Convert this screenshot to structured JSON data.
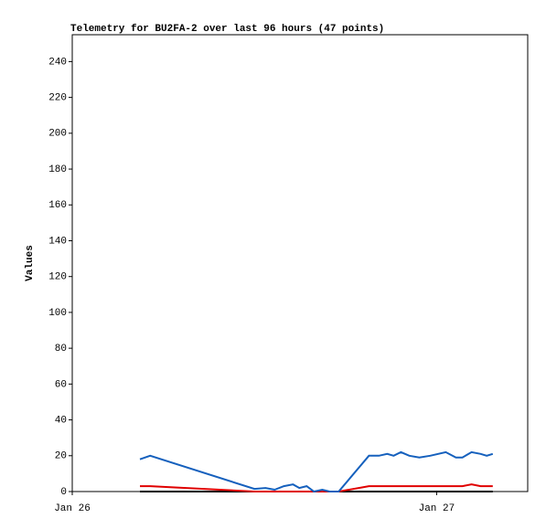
{
  "chart_data": {
    "type": "line",
    "title": "Telemetry for BU2FA-2 over last 96 hours (47 points)",
    "ylabel": "Values",
    "x": [
      4.46,
      5.13,
      12.0,
      12.73,
      13.33,
      13.94,
      14.54,
      14.96,
      15.44,
      15.92,
      16.47,
      16.95,
      17.55,
      19.54,
      20.2,
      20.75,
      21.17,
      21.65,
      22.2,
      22.86,
      23.58,
      24.6,
      25.27,
      25.7,
      26.3,
      26.9,
      27.3,
      27.7
    ],
    "series": [
      {
        "color": "#000000",
        "values": [
          0,
          0,
          0,
          0,
          0,
          0,
          0,
          0,
          0,
          0,
          0,
          0,
          0,
          0,
          0,
          0,
          0,
          0,
          0,
          0,
          0,
          0,
          0,
          0,
          0,
          0,
          0,
          0
        ]
      },
      {
        "color": "#e00000",
        "values": [
          3,
          3,
          0,
          0,
          0,
          0,
          0,
          0,
          0,
          0,
          0,
          0,
          0,
          3,
          3,
          3,
          3,
          3,
          3,
          3,
          3,
          3,
          3,
          3,
          4,
          3,
          3,
          3
        ]
      },
      {
        "color": "#1560bd",
        "values": [
          18,
          20,
          1.5,
          2,
          1,
          3,
          4,
          2,
          3,
          0,
          1,
          0,
          0,
          20,
          20,
          21,
          20,
          22,
          20,
          19,
          20,
          22,
          19,
          19,
          22,
          21,
          20,
          21
        ]
      }
    ],
    "xlim": [
      0,
      30
    ],
    "xticks": [
      {
        "value": 0,
        "label": "Jan 26"
      },
      {
        "value": 24,
        "label": "Jan 27"
      }
    ],
    "ylim": [
      0,
      255
    ],
    "yticks": [
      0,
      20,
      40,
      60,
      80,
      100,
      120,
      140,
      160,
      180,
      200,
      220,
      240
    ],
    "grid": false
  }
}
